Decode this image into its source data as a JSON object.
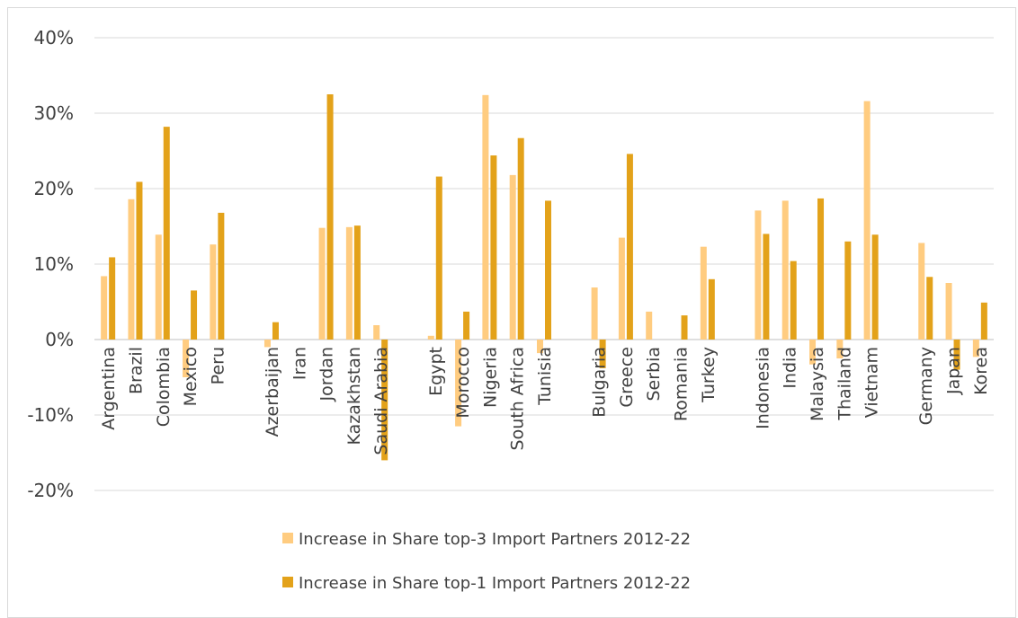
{
  "chart_data": {
    "type": "bar",
    "title": "",
    "xlabel": "",
    "ylabel": "",
    "ylim": [
      -20,
      40
    ],
    "yticks": [
      -20,
      -10,
      0,
      10,
      20,
      30,
      40
    ],
    "ytick_labels": [
      "-20%",
      "-10%",
      "0%",
      "10%",
      "20%",
      "30%",
      "40%"
    ],
    "grid": true,
    "legend_position": "bottom",
    "groups": [
      [
        "Argentina",
        "Brazil",
        "Colombia",
        "Mexico",
        "Peru"
      ],
      [
        "Azerbaijan",
        "Iran",
        "Jordan",
        "Kazakhstan",
        "Saudi Arabia"
      ],
      [
        "Egypt",
        "Morocco",
        "Nigeria",
        "South Africa",
        "Tunisia"
      ],
      [
        "Bulgaria",
        "Greece",
        "Serbia",
        "Romania",
        "Turkey"
      ],
      [
        "Indonesia",
        "India",
        "Malaysia",
        "Thailand",
        "Vietnam"
      ],
      [
        "Germany",
        "Japan",
        "Korea"
      ]
    ],
    "categories": [
      "Argentina",
      "Brazil",
      "Colombia",
      "Mexico",
      "Peru",
      "Azerbaijan",
      "Iran",
      "Jordan",
      "Kazakhstan",
      "Saudi Arabia",
      "Egypt",
      "Morocco",
      "Nigeria",
      "South Africa",
      "Tunisia",
      "Bulgaria",
      "Greece",
      "Serbia",
      "Romania",
      "Turkey",
      "Indonesia",
      "India",
      "Malaysia",
      "Thailand",
      "Vietnam",
      "Germany",
      "Japan",
      "Korea"
    ],
    "series": [
      {
        "name": "Increase in Share top-3 Import Partners 2012-22",
        "color": "#FFCC80",
        "values": [
          8.4,
          18.6,
          13.9,
          -5.0,
          12.6,
          -1.0,
          0.0,
          14.8,
          14.9,
          1.9,
          0.5,
          -11.5,
          32.4,
          21.8,
          -1.8,
          6.9,
          13.5,
          3.7,
          0.0,
          12.3,
          17.1,
          18.4,
          -3.3,
          -2.5,
          31.6,
          12.8,
          7.5,
          -2.3
        ]
      },
      {
        "name": "Increase in Share top-1 Import Partners 2012-22",
        "color": "#E3A21A",
        "values": [
          10.9,
          20.9,
          28.2,
          6.5,
          16.8,
          2.3,
          0.0,
          32.5,
          15.1,
          -16.0,
          21.6,
          3.7,
          24.4,
          26.7,
          18.4,
          -3.8,
          24.6,
          0.0,
          3.2,
          8.0,
          14.0,
          10.4,
          18.7,
          13.0,
          13.9,
          8.3,
          -4.0,
          4.9
        ]
      }
    ]
  }
}
